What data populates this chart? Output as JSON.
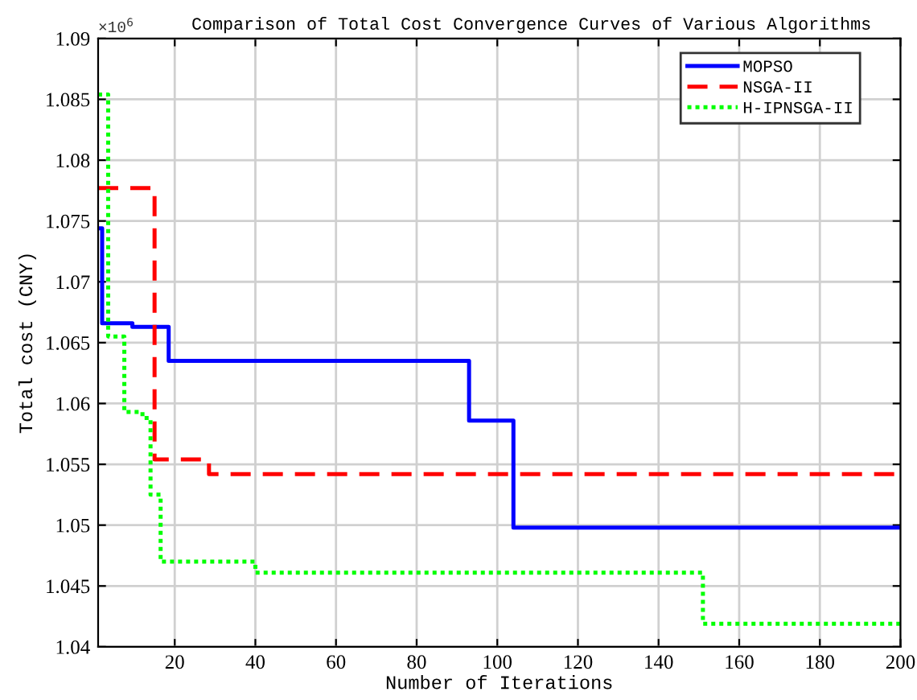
{
  "chart_data": {
    "type": "step",
    "title": "Comparison of Total Cost Convergence Curves of Various Algorithms",
    "xlabel": "Number of Iterations",
    "ylabel": "Total cost (CNY)",
    "annotations": [
      "×10$^{6}$"
    ],
    "series": [
      {
        "name": "MOPSO",
        "color": "#0000ff",
        "line_style": "solid",
        "x": [
          1,
          2,
          9.5,
          18.5,
          93,
          104,
          200
        ],
        "values": [
          1.0744,
          1.0666,
          1.0663,
          1.0635,
          1.0586,
          1.0498,
          1.0498
        ]
      },
      {
        "name": "NSGA-II",
        "color": "#ff0000",
        "line_style": "dashed",
        "x": [
          1,
          15,
          28.5,
          200
        ],
        "values": [
          1.0777,
          1.0554,
          1.0542,
          1.0542
        ]
      },
      {
        "name": "H-IPNSGA-II",
        "color": "#00ff00",
        "line_style": "dotted",
        "x": [
          1,
          3.5,
          7.5,
          12,
          14,
          16.5,
          40,
          151,
          200
        ],
        "values": [
          1.0854,
          1.0655,
          1.0593,
          1.0588,
          1.0525,
          1.047,
          1.0461,
          1.0419,
          1.0419
        ]
      }
    ],
    "xlim": [
      1,
      200
    ],
    "xticks": [
      20,
      40,
      60,
      80,
      100,
      120,
      140,
      160,
      180,
      200
    ],
    "ylim": [
      1.04,
      1.09
    ],
    "yticks": [
      1.04,
      1.045,
      1.05,
      1.055,
      1.06,
      1.065,
      1.07,
      1.075,
      1.08,
      1.085,
      1.09
    ],
    "grid": true,
    "legend": "top right"
  }
}
